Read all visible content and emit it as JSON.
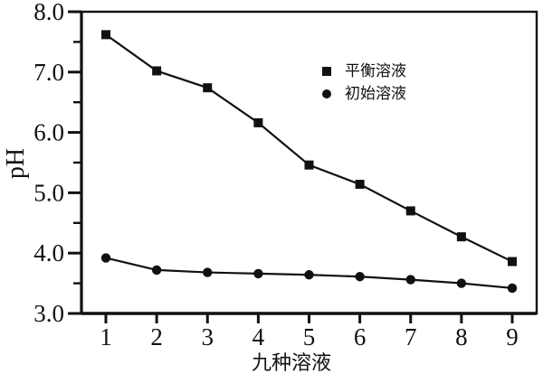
{
  "chart_data": {
    "type": "line",
    "title": "",
    "xlabel": "九种溶液",
    "ylabel": "pH",
    "x": [
      1,
      2,
      3,
      4,
      5,
      6,
      7,
      8,
      9
    ],
    "x_tick_labels": [
      "1",
      "2",
      "3",
      "4",
      "5",
      "6",
      "7",
      "8",
      "9"
    ],
    "ylim": [
      3.0,
      8.0
    ],
    "y_tick_labels": [
      "8.0",
      "7.0",
      "6.0",
      "5.0",
      "4.0",
      "3.0"
    ],
    "y_minor_ticks": [
      7.5,
      6.5,
      5.5,
      4.5,
      3.5
    ],
    "grid": false,
    "legend_position": "upper-center-inside",
    "background_color": "#ffffff",
    "line_color": "#111111",
    "series": [
      {
        "name": "平衡溶液",
        "marker": "square",
        "values": [
          7.62,
          7.02,
          6.74,
          6.16,
          5.46,
          5.14,
          4.7,
          4.27,
          3.86
        ]
      },
      {
        "name": "初始溶液",
        "marker": "circle",
        "values": [
          3.92,
          3.72,
          3.68,
          3.66,
          3.64,
          3.61,
          3.56,
          3.5,
          3.42
        ]
      }
    ]
  }
}
